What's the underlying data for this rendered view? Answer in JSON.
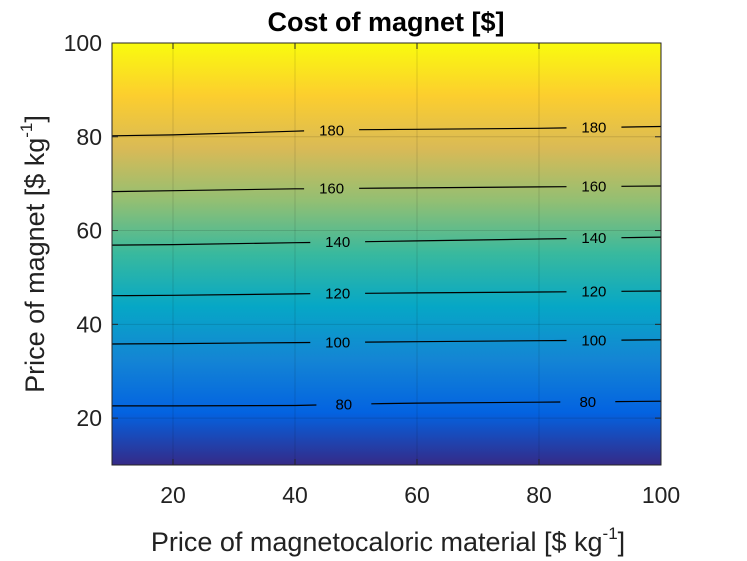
{
  "chart_data": {
    "type": "heatmap",
    "title": "Cost of magnet [$]",
    "xlabel": "Price of magnetocaloric material [$ kg",
    "xlabel_sup": "-1",
    "xlabel_end": "]",
    "ylabel": "Price of magnet [$ kg",
    "ylabel_sup": "-1",
    "ylabel_end": "]",
    "xlim": [
      10,
      100
    ],
    "ylim": [
      10,
      100
    ],
    "xticks": [
      20,
      40,
      60,
      80,
      100
    ],
    "yticks": [
      20,
      40,
      60,
      80,
      100
    ],
    "grid": true,
    "colormap": "parula",
    "colormap_stops": [
      "#352a87",
      "#0363e1",
      "#1485d4",
      "#06a7c6",
      "#38b99e",
      "#92bf73",
      "#d9ba56",
      "#fcce2e",
      "#f9fb0e"
    ],
    "contours": [
      {
        "level": 80,
        "label_x": [
          48,
          88
        ],
        "points": [
          [
            10,
            22.6
          ],
          [
            20,
            22.6
          ],
          [
            40,
            22.7
          ],
          [
            50,
            23.0
          ],
          [
            60,
            23.2
          ],
          [
            80,
            23.4
          ],
          [
            100,
            23.6
          ]
        ]
      },
      {
        "level": 100,
        "label_x": [
          47,
          89
        ],
        "points": [
          [
            10,
            35.8
          ],
          [
            20,
            35.9
          ],
          [
            40,
            36.1
          ],
          [
            50,
            36.2
          ],
          [
            60,
            36.3
          ],
          [
            80,
            36.5
          ],
          [
            100,
            36.7
          ]
        ]
      },
      {
        "level": 120,
        "label_x": [
          47,
          89
        ],
        "points": [
          [
            10,
            46.1
          ],
          [
            20,
            46.2
          ],
          [
            40,
            46.5
          ],
          [
            50,
            46.6
          ],
          [
            60,
            46.7
          ],
          [
            80,
            46.9
          ],
          [
            100,
            47.1
          ]
        ]
      },
      {
        "level": 140,
        "label_x": [
          47,
          89
        ],
        "points": [
          [
            10,
            56.9
          ],
          [
            20,
            57.0
          ],
          [
            40,
            57.4
          ],
          [
            50,
            57.6
          ],
          [
            60,
            57.8
          ],
          [
            80,
            58.2
          ],
          [
            100,
            58.6
          ]
        ]
      },
      {
        "level": 160,
        "label_x": [
          46,
          89
        ],
        "points": [
          [
            10,
            68.3
          ],
          [
            20,
            68.5
          ],
          [
            40,
            68.9
          ],
          [
            50,
            69.0
          ],
          [
            60,
            69.1
          ],
          [
            80,
            69.3
          ],
          [
            100,
            69.5
          ]
        ]
      },
      {
        "level": 180,
        "label_x": [
          46,
          89
        ],
        "points": [
          [
            10,
            80.2
          ],
          [
            20,
            80.4
          ],
          [
            40,
            81.2
          ],
          [
            50,
            81.5
          ],
          [
            60,
            81.6
          ],
          [
            80,
            81.8
          ],
          [
            100,
            82.2
          ]
        ]
      }
    ]
  }
}
